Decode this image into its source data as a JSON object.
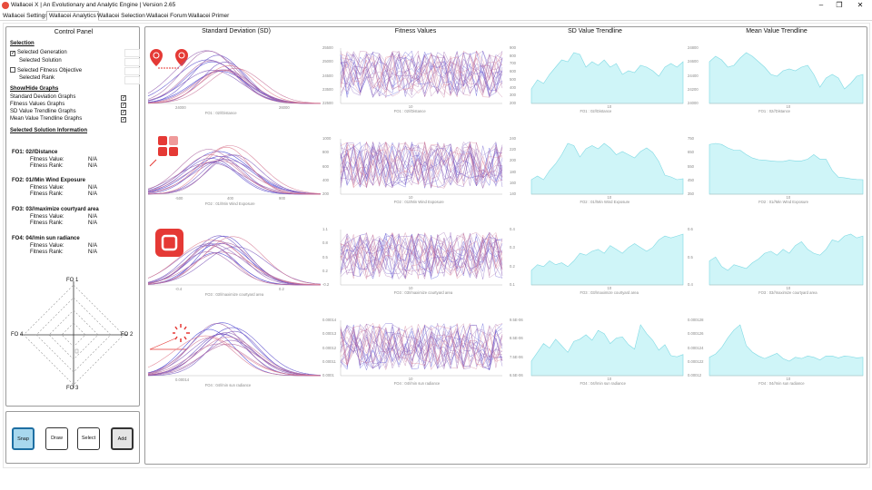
{
  "window": {
    "title": "Wallacei X  |  An Evolutionary and Analytic Engine  |  Version 2.65",
    "controls": [
      "–",
      "❐",
      "✕"
    ]
  },
  "tabs": [
    "Wallacei Settings",
    "Wallacei Analytics",
    "Wallacei Selection",
    "Wallacei Forum",
    "Wallacei Primer"
  ],
  "active_tab": "Wallacei Analytics",
  "control_panel": {
    "title": "Control Panel",
    "selection": {
      "heading": "Selection",
      "selected_generation": "Selected Generation",
      "selected_solution": "Selected Solution",
      "selected_fitness_objective": "Selected Fitness Objective",
      "selected_rank": "Selected Rank"
    },
    "show_hide": {
      "heading": "Show/Hide Graphs",
      "items": [
        "Standard Deviation Graphs",
        "Fitness Values Graphs",
        "SD Value Trendline Graphs",
        "Mean Value Trendline Graphs"
      ]
    },
    "solution_info": {
      "heading": "Selected Solution Information",
      "objectives": [
        {
          "name": "FO1:  02//Distance",
          "fitness_value_label": "Fitness Value:",
          "fitness_value": "N/A",
          "fitness_rank_label": "Fitness Rank:",
          "fitness_rank": "N/A"
        },
        {
          "name": "FO2:  01//Min Wind Exposure",
          "fitness_value_label": "Fitness Value:",
          "fitness_value": "N/A",
          "fitness_rank_label": "Fitness Rank:",
          "fitness_rank": "N/A"
        },
        {
          "name": "FO3:  03//maximize courtyard area",
          "fitness_value_label": "Fitness Value:",
          "fitness_value": "N/A",
          "fitness_rank_label": "Fitness Rank:",
          "fitness_rank": "N/A"
        },
        {
          "name": "FO4:  04//min sun radiance",
          "fitness_value_label": "Fitness Value:",
          "fitness_value": "N/A",
          "fitness_rank_label": "Fitness Rank:",
          "fitness_rank": "N/A"
        }
      ]
    },
    "radar": {
      "fo1": "FO 1",
      "fo2": "FO 2",
      "fo3": "FO 3",
      "fo4": "FO 4"
    }
  },
  "buttons": {
    "snap": "Snap",
    "draw": "Draw",
    "select": "Select",
    "add": "Add"
  },
  "columns": {
    "sd": "Standard Deviation (SD)",
    "fitness": "Fitness Values",
    "sd_trend": "SD Value Trendline",
    "mean_trend": "Mean Value Trendline"
  },
  "rows": [
    {
      "sd_axis": "FO1 : 02//Distance",
      "sd_ticks": [
        "24000",
        "26000"
      ],
      "fv_axis": "FO1 : 02//Distance",
      "fv_yticks": [
        "25500",
        "25000",
        "24500",
        "23500",
        "22500"
      ],
      "fv_xtick": "10",
      "sdt_axis": "FO1 : 02//Distance",
      "sdt_yticks": [
        "900",
        "800",
        "700",
        "600",
        "500",
        "400",
        "300",
        "200"
      ],
      "sdt_xtick": "10",
      "mt_axis": "FO1 : 02//Distance",
      "mt_yticks": [
        "24800",
        "24600",
        "24400",
        "24200",
        "24000"
      ],
      "mt_xtick": "10"
    },
    {
      "sd_axis": "FO2 : 01//Min Wind Exposure",
      "sd_ticks": [
        "-500",
        "400",
        "900"
      ],
      "fv_axis": "FO2 : 01//Min Wind Exposure",
      "fv_yticks": [
        "1000",
        "800",
        "600",
        "400",
        "200"
      ],
      "fv_xtick": "10",
      "sdt_axis": "FO2 : 01//Min Wind Exposure",
      "sdt_yticks": [
        "240",
        "220",
        "200",
        "180",
        "160",
        "140"
      ],
      "sdt_xtick": "10",
      "mt_axis": "FO2 : 01//Min Wind Exposure",
      "mt_yticks": [
        "750",
        "650",
        "550",
        "450",
        "350"
      ],
      "mt_xtick": "10"
    },
    {
      "sd_axis": "FO3 : 03//maximize courtyard area",
      "sd_ticks": [
        "-0.4",
        "0.2"
      ],
      "fv_axis": "FO3 : 03//maximize courtyard area",
      "fv_yticks": [
        "1.1",
        "0.8",
        "0.5",
        "0.2",
        "-0.2"
      ],
      "fv_xtick": "10",
      "sdt_axis": "FO3 : 03//maximize courtyard area",
      "sdt_yticks": [
        "0.4",
        "0.3",
        "0.2",
        "0.1"
      ],
      "sdt_xtick": "10",
      "mt_axis": "FO3 : 03//maximize courtyard area",
      "mt_yticks": [
        "0.6",
        "0.5",
        "0.4"
      ],
      "mt_xtick": "10"
    },
    {
      "sd_axis": "FO4 : 04//min sun radiance",
      "sd_ticks": [
        "0.00014"
      ],
      "fv_axis": "FO4 : 04//min sun radiance",
      "fv_yticks": [
        "0.00014",
        "0.00013",
        "0.00012",
        "0.00011",
        "0.0001"
      ],
      "fv_xtick": "10",
      "sdt_axis": "FO4 : 04//min sun radiance",
      "sdt_yticks": [
        "9.5E-06",
        "8.5E-06",
        "7.5E-06",
        "6.5E-06"
      ],
      "sdt_xtick": "10",
      "mt_axis": "FO4 : 04//min sun radiance",
      "mt_yticks": [
        "0.000128",
        "0.000126",
        "0.000124",
        "0.000122",
        "0.00012"
      ],
      "mt_xtick": "10"
    }
  ],
  "colors": {
    "accent": "#e53935",
    "trend_fill": "#cff5f8",
    "trend_line": "#7fd9e3",
    "sd_a": "#3a3ad6",
    "sd_b": "#e07a8a"
  },
  "chart_data": [
    {
      "type": "area",
      "name": "SD Value Trendline",
      "series": [
        {
          "objective": "FO1 : 02//Distance",
          "values": [
            640,
            690,
            670,
            720,
            760,
            800,
            790,
            840,
            830,
            760,
            790,
            770,
            800,
            760,
            780,
            720,
            740,
            730,
            770,
            760,
            740,
            710,
            760,
            780,
            760,
            790
          ]
        },
        {
          "objective": "FO2 : 01//Min Wind Exposure",
          "values": [
            150,
            158,
            150,
            170,
            185,
            205,
            230,
            225,
            200,
            218,
            225,
            218,
            230,
            220,
            205,
            212,
            205,
            198,
            212,
            220,
            210,
            190,
            160,
            156,
            150,
            152
          ]
        },
        {
          "objective": "FO3 : 03//maximize courtyard area",
          "values": [
            0.15,
            0.18,
            0.17,
            0.2,
            0.18,
            0.19,
            0.17,
            0.2,
            0.24,
            0.23,
            0.25,
            0.26,
            0.24,
            0.28,
            0.26,
            0.24,
            0.27,
            0.29,
            0.27,
            0.25,
            0.27,
            0.31,
            0.33,
            0.32,
            0.33,
            0.34
          ]
        },
        {
          "objective": "FO4 : 04//min sun radiance",
          "values": [
            6.8,
            7.6,
            8.4,
            8.0,
            8.8,
            8.2,
            7.6,
            8.6,
            8.8,
            9.2,
            8.7,
            9.6,
            9.3,
            8.4,
            8.9,
            9.0,
            8.3,
            7.9,
            10.1,
            9.3,
            8.7,
            7.8,
            8.3,
            7.3,
            7.2,
            7.4
          ]
        }
      ]
    },
    {
      "type": "area",
      "name": "Mean Value Trendline",
      "series": [
        {
          "objective": "FO1 : 02//Distance",
          "values": [
            24700,
            24760,
            24720,
            24640,
            24660,
            24740,
            24800,
            24760,
            24700,
            24640,
            24560,
            24540,
            24600,
            24620,
            24600,
            24640,
            24660,
            24560,
            24420,
            24520,
            24560,
            24520,
            24400,
            24460,
            24540,
            24560
          ]
        },
        {
          "objective": "FO2 : 01//Min Wind Exposure",
          "values": [
            690,
            700,
            690,
            660,
            640,
            640,
            600,
            570,
            555,
            550,
            545,
            540,
            540,
            550,
            545,
            545,
            560,
            600,
            560,
            560,
            460,
            400,
            395,
            385,
            380,
            378
          ]
        },
        {
          "objective": "FO3 : 03//maximize courtyard area",
          "values": [
            0.46,
            0.48,
            0.43,
            0.41,
            0.44,
            0.43,
            0.42,
            0.45,
            0.47,
            0.5,
            0.51,
            0.49,
            0.52,
            0.5,
            0.54,
            0.56,
            0.52,
            0.5,
            0.49,
            0.52,
            0.57,
            0.56,
            0.59,
            0.6,
            0.58,
            0.59
          ]
        },
        {
          "objective": "FO4 : 04//min sun radiance",
          "values": [
            0.000122,
            0.0001225,
            0.0001235,
            0.000125,
            0.0001262,
            0.000127,
            0.0001238,
            0.0001228,
            0.0001222,
            0.0001218,
            0.0001222,
            0.0001226,
            0.0001218,
            0.0001214,
            0.000122,
            0.0001218,
            0.0001222,
            0.000122,
            0.0001216,
            0.0001222,
            0.0001222,
            0.0001219,
            0.0001222,
            0.0001221,
            0.0001219,
            0.000122
          ]
        }
      ]
    }
  ]
}
